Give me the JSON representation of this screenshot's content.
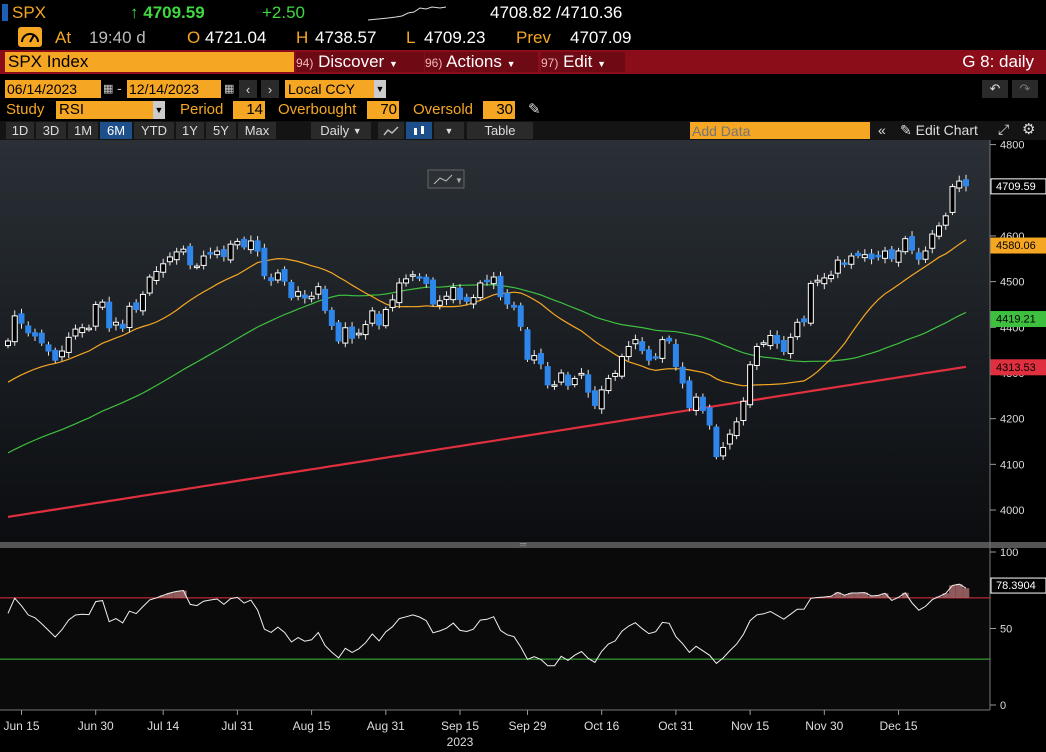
{
  "ticker": {
    "symbol": "SPX",
    "last": "4709.59",
    "change": "+2.50",
    "bid_ask": "4708.82 /4710.36",
    "at_label": "At",
    "time": "19:40",
    "time_suffix": "d",
    "open_label": "O",
    "open": "4721.04",
    "high_label": "H",
    "high": "4738.57",
    "low_label": "L",
    "low": "4709.23",
    "prev_label": "Prev",
    "prev": "4707.09"
  },
  "menubar": {
    "security": "SPX Index",
    "discover": "Discover",
    "discover_num": "94)",
    "actions": "Actions",
    "actions_num": "96)",
    "edit": "Edit",
    "edit_num": "97)",
    "graph_label": "G 8: daily"
  },
  "datebar": {
    "start": "06/14/2023",
    "end": "12/14/2023",
    "sep": "-",
    "currency": "Local CCY"
  },
  "study": {
    "label": "Study",
    "name": "RSI",
    "period_label": "Period",
    "period": "14",
    "overbought_label": "Overbought",
    "overbought": "70",
    "oversold_label": "Oversold",
    "oversold": "30"
  },
  "toolbar": {
    "ranges": [
      "1D",
      "3D",
      "1M",
      "6M",
      "YTD",
      "1Y",
      "5Y",
      "Max"
    ],
    "active_range": "6M",
    "interval": "Daily",
    "table": "Table",
    "add_data_placeholder": "Add Data",
    "edit_chart": "Edit Chart"
  },
  "chart_data": {
    "type": "candlestick",
    "price_axis": {
      "ticks": [
        "4800",
        "4600",
        "4500",
        "4400",
        "4300",
        "4200",
        "4100",
        "4000"
      ],
      "ylim": [
        3930,
        4810
      ]
    },
    "rsi_axis": {
      "ticks": [
        "100",
        "50",
        "0"
      ],
      "ylim": [
        0,
        100
      ],
      "overbought": 70,
      "oversold": 30
    },
    "x_ticks": [
      "Jun 15",
      "Jun 30",
      "Jul 14",
      "Jul 31",
      "Aug 15",
      "Aug 31",
      "Sep 15",
      "Sep 29",
      "Oct 16",
      "Oct 31",
      "Nov 15",
      "Nov 30",
      "Dec 15"
    ],
    "year_label": "2023",
    "last_tags": [
      {
        "value": "4709.59",
        "color": "#ffffff"
      },
      {
        "value": "4580.06",
        "color": "#f5a623"
      },
      {
        "value": "4419.21",
        "color": "#3fbf3f"
      },
      {
        "value": "4313.53",
        "color": "#e0303f"
      },
      {
        "value": "78.3904",
        "color": "#ffffff"
      }
    ],
    "close": [
      4370,
      4425,
      4409,
      4388,
      4381,
      4366,
      4348,
      4328,
      4348,
      4378,
      4396,
      4399,
      4398,
      4450,
      4455,
      4399,
      4411,
      4398,
      4446,
      4439,
      4472,
      4510,
      4522,
      4539,
      4554,
      4565,
      4571,
      4537,
      4534,
      4556,
      4562,
      4567,
      4555,
      4582,
      4588,
      4576,
      4589,
      4567,
      4513,
      4502,
      4519,
      4501,
      4465,
      4478,
      4464,
      4468,
      4489,
      4437,
      4404,
      4370,
      4399,
      4376,
      4387,
      4406,
      4436,
      4405,
      4439,
      4460,
      4497,
      4506,
      4515,
      4508,
      4496,
      4451,
      4458,
      4468,
      4487,
      4461,
      4457,
      4465,
      4497,
      4500,
      4510,
      4467,
      4451,
      4444,
      4402,
      4330,
      4338,
      4320,
      4274,
      4274,
      4300,
      4273,
      4288,
      4299,
      4258,
      4229,
      4263,
      4288,
      4299,
      4336,
      4358,
      4373,
      4349,
      4328,
      4335,
      4373,
      4370,
      4314,
      4278,
      4224,
      4247,
      4218,
      4186,
      4117,
      4137,
      4166,
      4193,
      4238,
      4318,
      4358,
      4366,
      4382,
      4365,
      4347,
      4378,
      4411,
      4412,
      4496,
      4503,
      4508,
      4514,
      4547,
      4538,
      4556,
      4557,
      4559,
      4550,
      4554,
      4567,
      4550,
      4567,
      4594,
      4569,
      4549,
      4567,
      4604,
      4622,
      4644,
      4708,
      4720,
      4709.59
    ],
    "sma_short": {
      "color": "#f5a623",
      "last": 4580.06
    },
    "sma_mid": {
      "color": "#3fbf3f",
      "last": 4419.21
    },
    "sma_long": {
      "color": "#e0303f",
      "last": 4313.53
    }
  }
}
